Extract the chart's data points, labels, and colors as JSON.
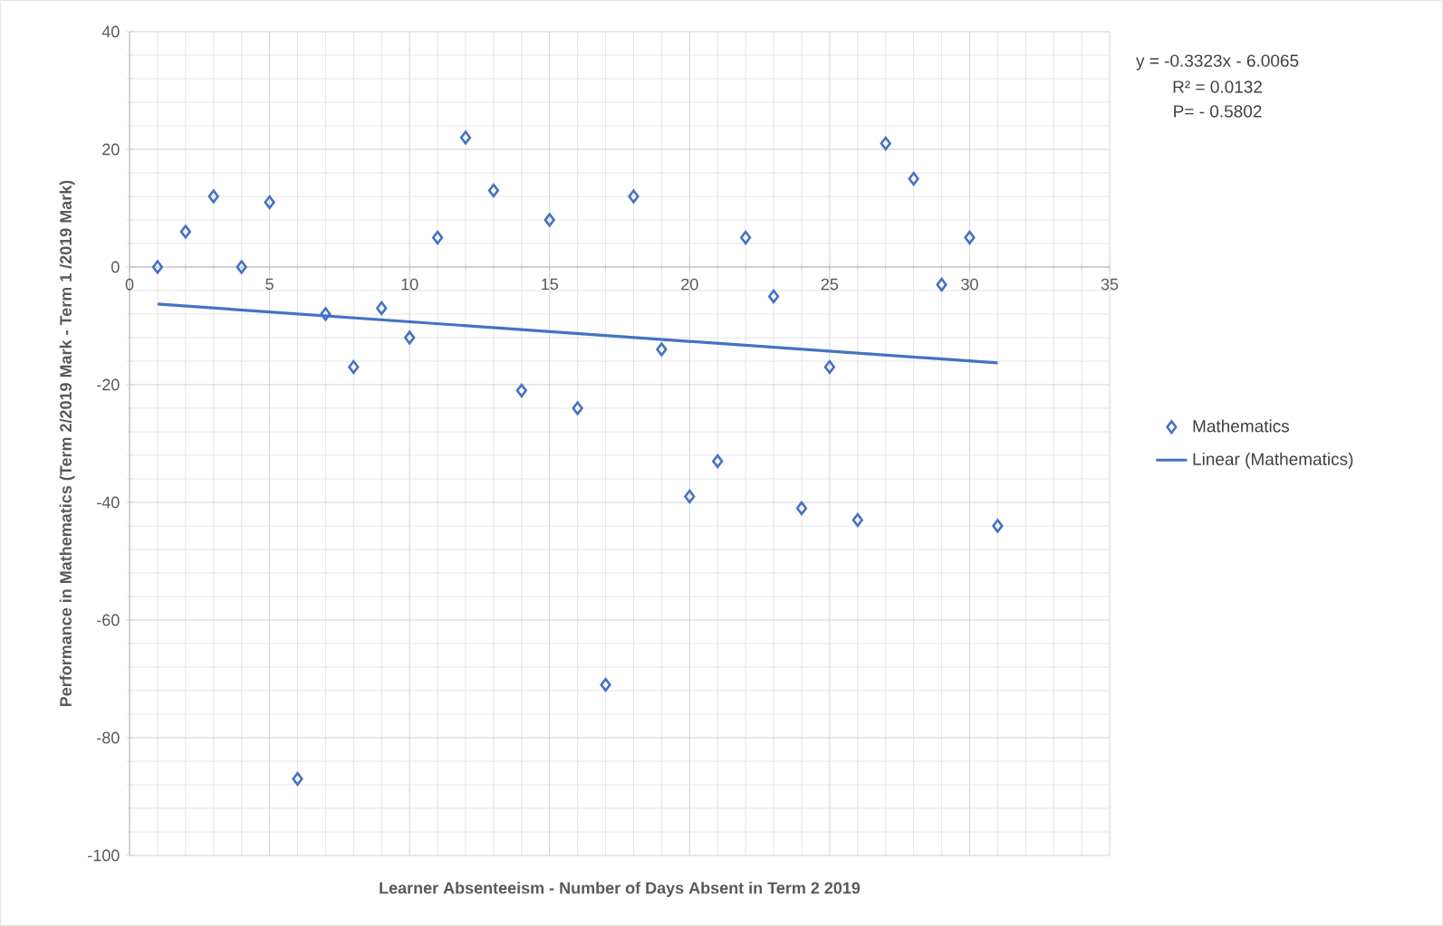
{
  "chart_data": {
    "type": "scatter",
    "xlabel": "Learner Absenteeism - Number of Days Absent in Term 2 2019",
    "ylabel": "Performance in Mathematics (Term 2/2019 Mark - Term 1 /2019 Mark)",
    "xlim": [
      0,
      35
    ],
    "xticks": [
      0,
      5,
      10,
      15,
      20,
      25,
      30,
      35
    ],
    "ylim": [
      -100,
      40
    ],
    "yticks": [
      -100,
      -80,
      -60,
      -40,
      -20,
      0,
      20,
      40
    ],
    "grid": true,
    "legend": "right",
    "annotations": [
      "y = -0.3323x - 6.0065",
      "R² = 0.0132",
      "P= - 0.5802"
    ],
    "series": [
      {
        "name": "Mathematics",
        "marker": "diamond",
        "color": "#4472c4",
        "x": [
          1,
          2,
          3,
          4,
          5,
          6,
          7,
          8,
          9,
          10,
          11,
          12,
          13,
          14,
          15,
          16,
          17,
          18,
          19,
          20,
          21,
          22,
          23,
          24,
          25,
          26,
          27,
          28,
          29,
          30,
          31
        ],
        "values": [
          0,
          6,
          12,
          0,
          11,
          -87,
          -8,
          -17,
          -7,
          -12,
          5,
          22,
          13,
          -21,
          8,
          -24,
          -71,
          12,
          -14,
          -39,
          -33,
          5,
          -5,
          -41,
          -17,
          -43,
          21,
          15,
          -3,
          5,
          -44
        ]
      },
      {
        "name": "Linear (Mathematics)",
        "type": "line",
        "marker": "none",
        "color": "#4472c4",
        "x": [
          1,
          31
        ],
        "values": [
          -6.3,
          -16.3
        ]
      }
    ]
  }
}
